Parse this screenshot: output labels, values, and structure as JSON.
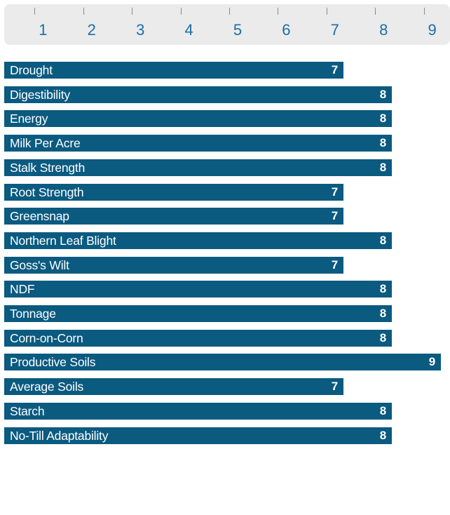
{
  "chart_data": {
    "type": "bar",
    "orientation": "horizontal",
    "scale_ticks": [
      "1",
      "2",
      "3",
      "4",
      "5",
      "6",
      "7",
      "8",
      "9"
    ],
    "xlim": [
      0,
      9
    ],
    "categories": [
      "Drought",
      "Digestibility",
      "Energy",
      "Milk Per Acre",
      "Stalk Strength",
      "Root Strength",
      "Greensnap",
      "Northern Leaf Blight",
      "Goss's Wilt",
      "NDF",
      "Tonnage",
      "Corn-on-Corn",
      "Productive Soils",
      "Average Soils",
      "Starch",
      "No-Till Adaptability"
    ],
    "values": [
      7,
      8,
      8,
      8,
      8,
      7,
      7,
      8,
      7,
      8,
      8,
      8,
      9,
      7,
      8,
      8
    ],
    "colors": {
      "bar": "#0b5a80",
      "scale_background": "#ebebeb",
      "tick_label": "#1b6fa8",
      "bar_text": "#ffffff"
    }
  }
}
